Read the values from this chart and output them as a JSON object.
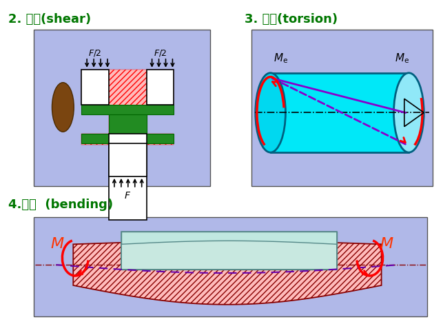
{
  "bg_color": "#ffffff",
  "title1": "2. 剪切(shear)",
  "title2": "3. 扭转(torsion)",
  "title3": "4.弯曲  (bending)",
  "title_color": "#007700",
  "panel_bg": "#b0b8e8",
  "cyan_color": "#00e8f8",
  "green_color": "#228B22",
  "brown_color": "#7a5010",
  "red_hatch_fc": "#ffbbbb",
  "arrow_color": "#000000",
  "red_arrow": "#ff0000",
  "purple_color": "#8800cc",
  "dash_dot_color": "#888800"
}
